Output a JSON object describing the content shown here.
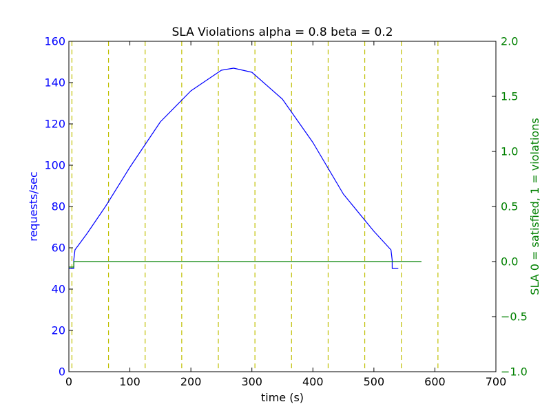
{
  "chart_data": {
    "type": "line",
    "title": "SLA Violations alpha = 0.8 beta = 0.2",
    "xlabel": "time (s)",
    "ylabel_left": "requests/sec",
    "ylabel_right": "SLA 0 = satisfied, 1 = violations",
    "xlim": [
      0,
      700
    ],
    "ylim_left": [
      0,
      160
    ],
    "ylim_right": [
      -1.0,
      2.0
    ],
    "xticks": [
      "0",
      "100",
      "200",
      "300",
      "400",
      "500",
      "600",
      "700"
    ],
    "yticks_left": [
      "0",
      "20",
      "40",
      "60",
      "80",
      "100",
      "120",
      "140",
      "160"
    ],
    "yticks_right": [
      "−1.0",
      "−0.5",
      "0.0",
      "0.5",
      "1.0",
      "1.5",
      "2.0"
    ],
    "colors": {
      "requests": "#0000ff",
      "sla": "#008000",
      "intervals": "#bfbf00",
      "left_axis": "#0000ff",
      "right_axis": "#008000"
    },
    "series": [
      {
        "axis": "left",
        "color": "#0000ff",
        "x": [
          0,
          8,
          8,
          10,
          30,
          60,
          100,
          150,
          200,
          250,
          270,
          300,
          350,
          400,
          450,
          500,
          528,
          530,
          530,
          540
        ],
        "y": [
          50,
          50,
          54,
          59,
          67,
          80,
          99,
          121,
          136,
          146,
          147,
          145,
          132,
          111,
          86,
          68,
          59,
          54,
          50,
          50
        ]
      },
      {
        "axis": "right",
        "color": "#008000",
        "x": [
          0,
          8,
          8,
          578
        ],
        "y": [
          -0.05,
          -0.05,
          0.0,
          0.0
        ]
      }
    ],
    "vlines_x": [
      5,
      65,
      125,
      185,
      245,
      305,
      365,
      425,
      485,
      545,
      605
    ]
  }
}
